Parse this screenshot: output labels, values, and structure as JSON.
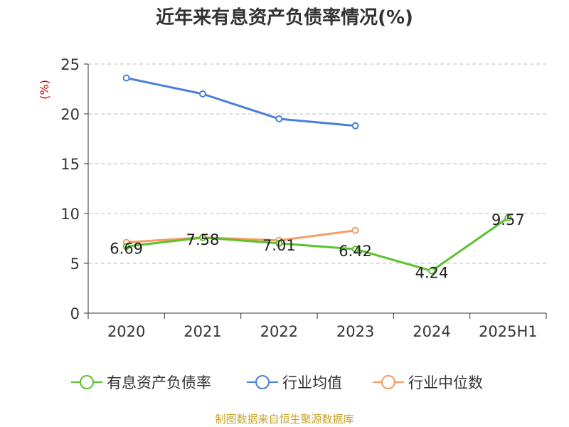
{
  "title": "近年来有息资产负债率情况(%)",
  "source": "制图数据来自恒生聚源数据库",
  "chart_data": {
    "type": "line",
    "ylabel": "(%)",
    "xlabel": "",
    "ylim": [
      0,
      25
    ],
    "yticks": [
      0,
      5,
      10,
      15,
      20,
      25
    ],
    "categories": [
      "2020",
      "2021",
      "2022",
      "2023",
      "2024",
      "2025H1"
    ],
    "grid": true,
    "legend_position": "bottom",
    "series": [
      {
        "name": "有息资产负债率",
        "color": "#5cc12b",
        "values": [
          6.69,
          7.58,
          7.01,
          6.42,
          4.24,
          9.57
        ],
        "labels": [
          "6.69",
          "7.58",
          "7.01",
          "6.42",
          "4.24",
          "9.57"
        ]
      },
      {
        "name": "行业均值",
        "color": "#4a7fd8",
        "values": [
          23.6,
          22.0,
          19.5,
          18.8,
          null,
          null
        ]
      },
      {
        "name": "行业中位数",
        "color": "#f79a63",
        "values": [
          7.1,
          7.6,
          7.3,
          8.3,
          null,
          null
        ]
      }
    ]
  }
}
